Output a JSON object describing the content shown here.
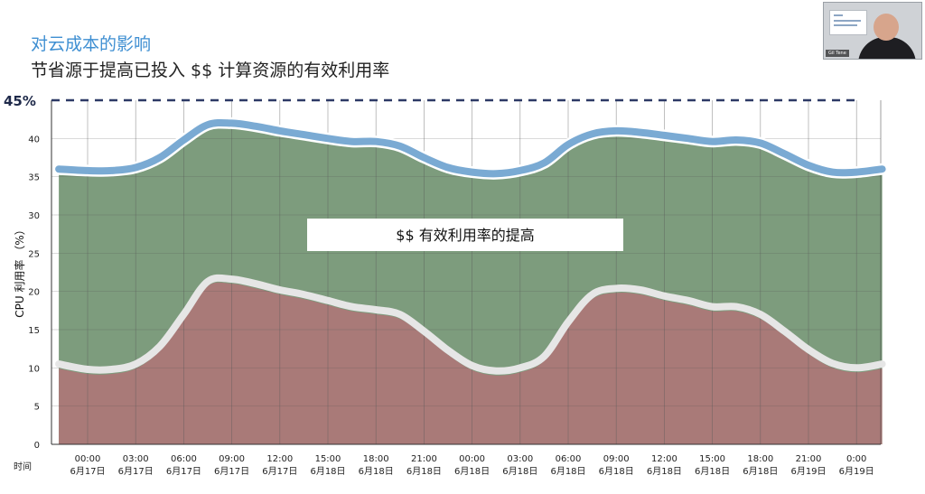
{
  "header": {
    "title": "对云成本的影响",
    "subtitle": "节省源于提高已投入 $$ 计算资源的有效利用率"
  },
  "video_tile": {
    "name_tag": "Gil Tene"
  },
  "colors": {
    "title": "#3f8fd2",
    "upper_line": "#7aaad3",
    "green_area": "#7d9c7d",
    "red_area": "#a97a78",
    "lower_line": "#e6e6e6",
    "target_line": "#2d3a66"
  },
  "chart_data": {
    "type": "area",
    "ylabel": "CPU 利用率 （%）",
    "ylim": [
      0,
      45
    ],
    "yticks": [
      "0",
      "5",
      "10",
      "15",
      "20",
      "25",
      "30",
      "35",
      "40"
    ],
    "target_label": "45%",
    "target_value": 45,
    "grid": true,
    "xlabel_lead": "时间",
    "xticks": [
      {
        "time": "00:00",
        "date": "6月17日"
      },
      {
        "time": "03:00",
        "date": "6月17日"
      },
      {
        "time": "06:00",
        "date": "6月17日"
      },
      {
        "time": "09:00",
        "date": "6月17日"
      },
      {
        "time": "12:00",
        "date": "6月17日"
      },
      {
        "time": "15:00",
        "date": "6月18日"
      },
      {
        "time": "18:00",
        "date": "6月18日"
      },
      {
        "time": "21:00",
        "date": "6月18日"
      },
      {
        "time": "00:00",
        "date": "6月18日"
      },
      {
        "time": "03:00",
        "date": "6月18日"
      },
      {
        "time": "06:00",
        "date": "6月18日"
      },
      {
        "time": "09:00",
        "date": "6月18日"
      },
      {
        "time": "12:00",
        "date": "6月18日"
      },
      {
        "time": "15:00",
        "date": "6月18日"
      },
      {
        "time": "18:00",
        "date": "6月18日"
      },
      {
        "time": "21:00",
        "date": "6月19日"
      },
      {
        "time": "0:00",
        "date": "6月19日"
      }
    ],
    "x_hours": [
      -1.8,
      0,
      1.5,
      3,
      4.5,
      6,
      7.5,
      9,
      10.5,
      12,
      13.5,
      15,
      16.5,
      18,
      19.5,
      21,
      22.5,
      24,
      25.5,
      27,
      28.5,
      30,
      31.5,
      33,
      34.5,
      36,
      37.5,
      39,
      40.5,
      42,
      43.5,
      45,
      46.5,
      48,
      49.6
    ],
    "series": [
      {
        "values": [
          36,
          35.8,
          35.8,
          36.2,
          37.5,
          39.8,
          41.8,
          42,
          41.6,
          41,
          40.5,
          40,
          39.6,
          39.6,
          39,
          37.5,
          36.2,
          35.6,
          35.4,
          35.8,
          36.8,
          39.2,
          40.6,
          41,
          40.8,
          40.4,
          40,
          39.6,
          39.8,
          39.4,
          38,
          36.5,
          35.6,
          35.6,
          36
        ]
      },
      {
        "values": [
          10.5,
          9.8,
          9.8,
          10.5,
          12.8,
          17,
          21.3,
          21.6,
          21,
          20.2,
          19.6,
          18.8,
          18,
          17.6,
          17,
          14.8,
          12.3,
          10.3,
          9.6,
          10,
          11.5,
          16,
          19.6,
          20.4,
          20.2,
          19.4,
          18.8,
          18,
          18,
          17,
          14.8,
          12.4,
          10.6,
          10,
          10.5
        ]
      }
    ],
    "annotation": "$$ 有效利用率的提高"
  }
}
